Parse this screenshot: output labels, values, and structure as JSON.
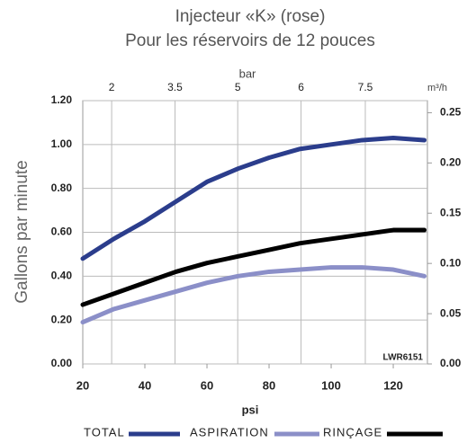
{
  "chart_data": {
    "type": "line",
    "title": "Injecteur «K» (rose)",
    "subtitle": "Pour les réservoirs de 12 pouces",
    "y_label": "Gallons par minute",
    "x_label": "psi",
    "x2_label": "bar",
    "y2_label": "m³/h",
    "annotation": "LWR6151",
    "x": [
      20,
      30,
      40,
      50,
      60,
      70,
      80,
      90,
      100,
      110,
      120,
      130
    ],
    "series": [
      {
        "name": "TOTAL",
        "color": "#2b3d8c",
        "values": [
          0.48,
          0.57,
          0.65,
          0.74,
          0.83,
          0.89,
          0.94,
          0.98,
          1.0,
          1.02,
          1.03,
          1.02
        ]
      },
      {
        "name": "ASPIRATION",
        "color": "#8b8fc8",
        "values": [
          0.19,
          0.25,
          0.29,
          0.33,
          0.37,
          0.4,
          0.42,
          0.43,
          0.44,
          0.44,
          0.43,
          0.4
        ]
      },
      {
        "name": "RINÇAGE",
        "color": "#000000",
        "values": [
          0.27,
          0.32,
          0.37,
          0.42,
          0.46,
          0.49,
          0.52,
          0.55,
          0.57,
          0.59,
          0.61,
          0.61
        ]
      }
    ],
    "xlim": [
      20,
      131
    ],
    "xticks": [
      20,
      40,
      60,
      80,
      100,
      120
    ],
    "x2ticks": [
      {
        "value": 29.3,
        "label": "2"
      },
      {
        "value": 49.7,
        "label": "3.5"
      },
      {
        "value": 69.9,
        "label": "5"
      },
      {
        "value": 90.3,
        "label": "6"
      },
      {
        "value": 111,
        "label": "7.5"
      }
    ],
    "ylim": [
      0,
      1.2
    ],
    "yticks": [
      {
        "value": 0,
        "label": "0.00"
      },
      {
        "value": 0.2,
        "label": "0.20"
      },
      {
        "value": 0.4,
        "label": "0.40"
      },
      {
        "value": 0.6,
        "label": "0.60"
      },
      {
        "value": 0.8,
        "label": "0.80"
      },
      {
        "value": 1.0,
        "label": "1.00"
      },
      {
        "value": 1.2,
        "label": "1.20"
      }
    ],
    "y2lim": [
      0,
      0.262
    ],
    "y2ticks": [
      {
        "value": 0,
        "label": "0.00"
      },
      {
        "value": 0.05,
        "label": "0.05"
      },
      {
        "value": 0.1,
        "label": "0.10"
      },
      {
        "value": 0.15,
        "label": "0.15"
      },
      {
        "value": 0.2,
        "label": "0.20"
      },
      {
        "value": 0.25,
        "label": "0.25"
      }
    ],
    "grid": true
  }
}
